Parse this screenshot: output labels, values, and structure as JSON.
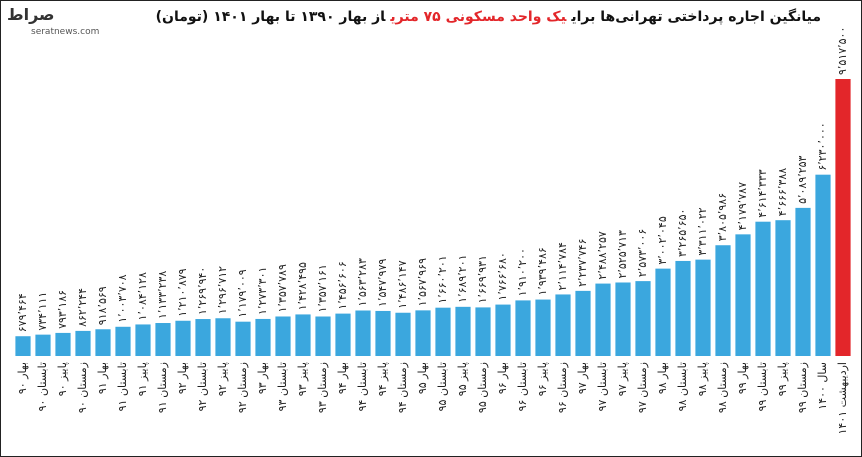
{
  "logo": "صراط",
  "source": "seratnews.com",
  "chart_data": {
    "type": "bar",
    "title_parts": [
      "میانگین اجاره پرداختی تهرانی‌ها برای",
      "یک واحد مسکونی ۷۵ متری",
      "از بهار ۱۳۹۰ تا بهار ۱۴۰۱ (تومان)"
    ],
    "title_highlight": 1,
    "categories": [
      "بهار ۹۰",
      "تابستان ۹۰",
      "پاییز ۹۰",
      "زمستان ۹۰",
      "بهار ۹۱",
      "تابستان ۹۱",
      "پاییز ۹۱",
      "زمستان ۹۱",
      "بهار ۹۲",
      "تابستان ۹۲",
      "پاییز ۹۲",
      "زمستان ۹۲",
      "بهار ۹۳",
      "تابستان ۹۳",
      "پاییز ۹۳",
      "زمستان ۹۳",
      "بهار ۹۴",
      "تابستان ۹۴",
      "پاییز ۹۴",
      "زمستان ۹۴",
      "بهار ۹۵",
      "تابستان ۹۵",
      "پاییز ۹۵",
      "زمستان ۹۵",
      "بهار ۹۶",
      "تابستان ۹۶",
      "پاییز ۹۶",
      "زمستان ۹۶",
      "بهار ۹۷",
      "تابستان ۹۷",
      "پاییز ۹۷",
      "زمستان ۹۷",
      "بهار ۹۸",
      "تابستان ۹۸",
      "پاییز ۹۸",
      "زمستان ۹۸",
      "بهار ۹۹",
      "تابستان ۹۹",
      "پاییز ۹۹",
      "زمستان ۹۹",
      "سال ۱۴۰۰",
      "اردیبهشت ۱۴۰۱"
    ],
    "values": [
      679464,
      734111,
      793186,
      862244,
      918569,
      1003708,
      1084128,
      1133238,
      1210879,
      1269940,
      1296712,
      1179009,
      1273301,
      1357789,
      1428495,
      1357161,
      1456606,
      1563283,
      1547979,
      1486147,
      1567969,
      1660201,
      1689201,
      1669931,
      1766680,
      1910200,
      1939486,
      2114784,
      2237746,
      2488257,
      2525713,
      2573006,
      3002045,
      3265650,
      3311022,
      3805986,
      4179787,
      4614333,
      4666388,
      5089253,
      6230000,
      9517500
    ],
    "value_labels": [
      "۶۷۹٬۴۶۴",
      "۷۳۴٬۱۱۱",
      "۷۹۳٬۱۸۶",
      "۸۶۲٬۲۴۴",
      "۹۱۸٬۵۶۹",
      "۱٬۰۰۳٬۷۰۸",
      "۱٬۰۸۴٬۱۲۸",
      "۱٬۱۳۳٬۲۳۸",
      "۱٬۲۱۰٬۸۷۹",
      "۱٬۲۶۹٬۹۴۰",
      "۱٬۲۹۶٬۷۱۲",
      "۱٬۱۷۹٬۰۰۹",
      "۱٬۲۷۳٬۳۰۱",
      "۱٬۳۵۷٬۷۸۹",
      "۱٬۴۲۸٬۴۹۵",
      "۱٬۳۵۷٬۱۶۱",
      "۱٬۴۵۶٬۶۰۶",
      "۱٬۵۶۳٬۲۸۳",
      "۱٬۵۴۷٬۹۷۹",
      "۱٬۴۸۶٬۱۴۷",
      "۱٬۵۶۷٬۹۶۹",
      "۱٬۶۶۰٬۲۰۱",
      "۱٬۶۸۹٬۲۰۱",
      "۱٬۶۶۹٬۹۳۱",
      "۱٬۷۶۶٬۶۸۰",
      "۱٬۹۱۰٬۲۰۰",
      "۱٬۹۳۹٬۴۸۶",
      "۲٬۱۱۴٬۷۸۴",
      "۲٬۲۳۷٬۷۴۶",
      "۲٬۴۸۸٬۲۵۷",
      "۲٬۵۲۵٬۷۱۳",
      "۲٬۵۷۳٬۰۰۶",
      "۳٬۰۰۲٬۰۴۵",
      "۳٬۲۶۵٬۶۵۰",
      "۳٬۳۱۱٬۰۲۲",
      "۳٬۸۰۵٬۹۸۶",
      "۴٬۱۷۹٬۷۸۷",
      "۴٬۶۱۴٬۳۳۳",
      "۴٬۶۶۶٬۳۸۸",
      "۵٬۰۸۹٬۲۵۳",
      "۶٬۲۳۰٬۰۰۰",
      "۹٬۵۱۷٬۵۰۰"
    ],
    "colors": [
      "#3ba7de",
      "#3ba7de",
      "#3ba7de",
      "#3ba7de",
      "#3ba7de",
      "#3ba7de",
      "#3ba7de",
      "#3ba7de",
      "#3ba7de",
      "#3ba7de",
      "#3ba7de",
      "#3ba7de",
      "#3ba7de",
      "#3ba7de",
      "#3ba7de",
      "#3ba7de",
      "#3ba7de",
      "#3ba7de",
      "#3ba7de",
      "#3ba7de",
      "#3ba7de",
      "#3ba7de",
      "#3ba7de",
      "#3ba7de",
      "#3ba7de",
      "#3ba7de",
      "#3ba7de",
      "#3ba7de",
      "#3ba7de",
      "#3ba7de",
      "#3ba7de",
      "#3ba7de",
      "#3ba7de",
      "#3ba7de",
      "#3ba7de",
      "#3ba7de",
      "#3ba7de",
      "#3ba7de",
      "#3ba7de",
      "#3ba7de",
      "#3ba7de",
      "#e3262a"
    ]
  }
}
